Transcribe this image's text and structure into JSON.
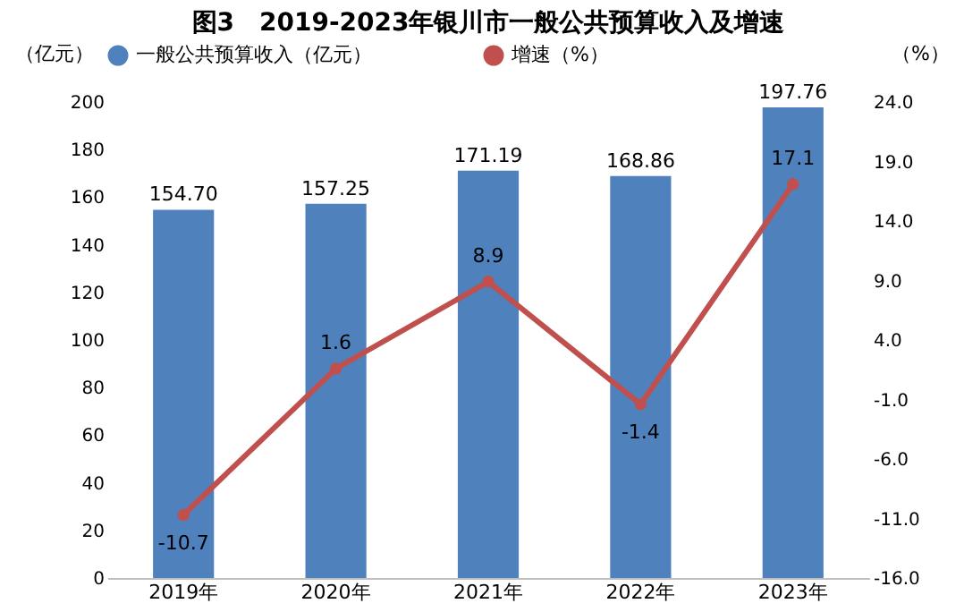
{
  "chart_data": {
    "type": "bar",
    "title": "图3　2019-2023年银川市一般公共预算收入及增速",
    "categories": [
      "2019年",
      "2020年",
      "2021年",
      "2022年",
      "2023年"
    ],
    "series": [
      {
        "name": "一般公共预算收入（亿元）",
        "color": "#4f81bd",
        "values": [
          154.7,
          157.25,
          171.19,
          168.86,
          197.76
        ],
        "value_labels": [
          "154.70",
          "157.25",
          "171.19",
          "168.86",
          "197.76"
        ]
      },
      {
        "name": "增速（%）",
        "type": "line",
        "axis": "y2",
        "color": "#c0504d",
        "values": [
          -10.7,
          1.6,
          8.9,
          -1.4,
          17.1
        ],
        "value_labels": [
          "-10.7",
          "1.6",
          "8.9",
          "-1.4",
          "17.1"
        ]
      }
    ],
    "ylabel": "（亿元）",
    "y2label": "（%）",
    "ylim": [
      0,
      200
    ],
    "yticks": [
      0,
      20,
      40,
      60,
      80,
      100,
      120,
      140,
      160,
      180,
      200
    ],
    "y2lim": [
      -16,
      24
    ],
    "y2ticks": [
      {
        "value": -16,
        "label": "-16.0"
      },
      {
        "value": -11,
        "label": "-11.0"
      },
      {
        "value": -6,
        "label": "-6.0"
      },
      {
        "value": -1,
        "label": "-1.0"
      },
      {
        "value": 4,
        "label": "4.0"
      },
      {
        "value": 9,
        "label": "9.0"
      },
      {
        "value": 14,
        "label": "14.0"
      },
      {
        "value": 19,
        "label": "19.0"
      },
      {
        "value": 24,
        "label": "24.0"
      }
    ],
    "legend": "top",
    "marker": "circle",
    "line_style": "solid"
  }
}
